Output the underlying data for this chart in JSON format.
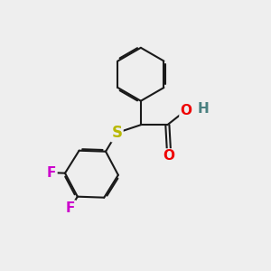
{
  "background_color": "#eeeeee",
  "bond_color": "#1a1a1a",
  "bond_width": 1.5,
  "dbo": 0.055,
  "S_color": "#b8b800",
  "O_color": "#ee0000",
  "F_color": "#cc00cc",
  "H_color": "#4a8080",
  "font_size": 11,
  "fig_width": 3.0,
  "fig_height": 3.0,
  "xlim": [
    0,
    10
  ],
  "ylim": [
    0,
    10
  ]
}
